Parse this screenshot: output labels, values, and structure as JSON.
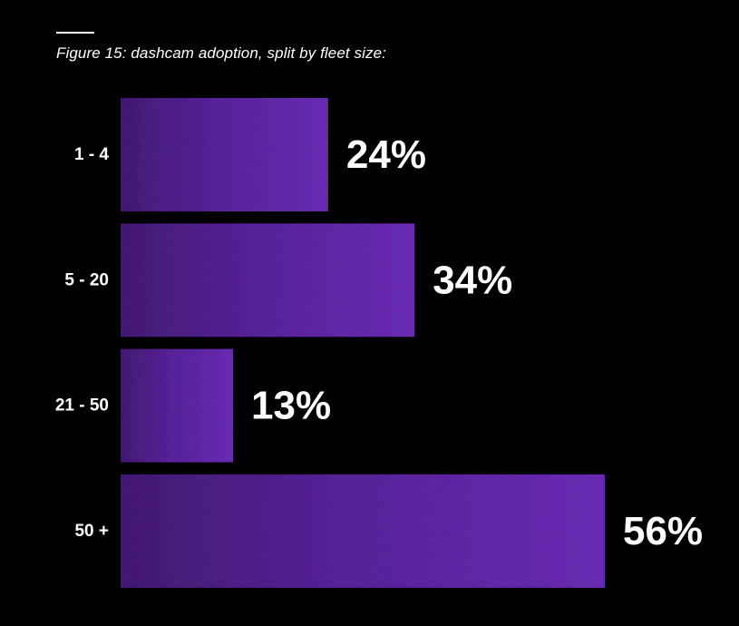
{
  "title": "Figure 15: dashcam adoption, split by fleet size:",
  "colors": {
    "background": "#000000",
    "bar_light": "#6a2ab8",
    "bar_dark": "#3d1870",
    "text": "#ffffff"
  },
  "chart_data": {
    "type": "bar",
    "orientation": "horizontal",
    "title": "Figure 15: dashcam adoption, split by fleet size:",
    "categories": [
      "1 - 4",
      "5 - 20",
      "21 - 50",
      "50 +"
    ],
    "values": [
      24,
      34,
      13,
      56
    ],
    "value_labels": [
      "24%",
      "34%",
      "13%",
      "56%"
    ],
    "unit": "%",
    "xlabel": "",
    "ylabel": "",
    "xlim": [
      0,
      56
    ],
    "grid": false,
    "legend": "none"
  }
}
